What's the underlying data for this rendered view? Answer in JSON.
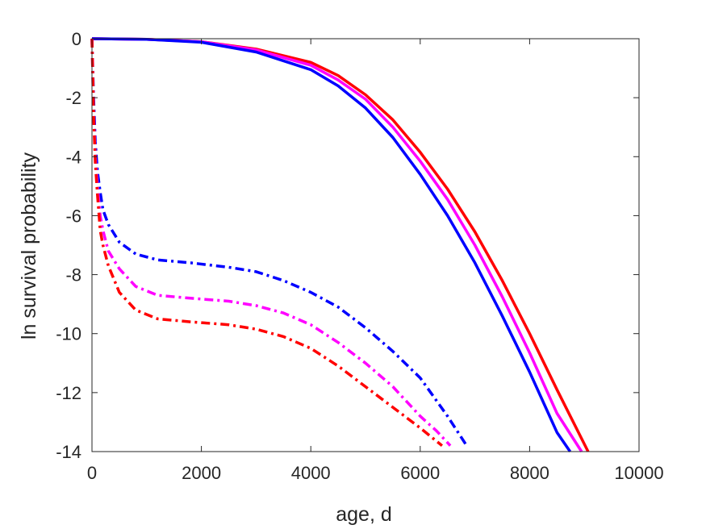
{
  "chart_data": {
    "type": "line",
    "title": "",
    "xlabel": "age, d",
    "ylabel": "ln survival probability",
    "xlim": [
      0,
      10000
    ],
    "ylim": [
      -14,
      0
    ],
    "xticks": [
      0,
      2000,
      4000,
      6000,
      8000,
      10000
    ],
    "xtick_labels": [
      "0",
      "2000",
      "4000",
      "6000",
      "8000",
      "10000"
    ],
    "yticks": [
      0,
      -2,
      -4,
      -6,
      -8,
      -10,
      -12,
      -14
    ],
    "ytick_labels": [
      "0",
      "-2",
      "-4",
      "-6",
      "-8",
      "-10",
      "-12",
      "-14"
    ],
    "grid": false,
    "legend": "none",
    "series": [
      {
        "color": "#ff0000",
        "style": "solid",
        "x": [
          0,
          1000,
          2000,
          3000,
          4000,
          4500,
          5000,
          5500,
          6000,
          6500,
          7000,
          7500,
          8000,
          8500,
          9070
        ],
        "y": [
          0,
          -0.02,
          -0.1,
          -0.35,
          -0.8,
          -1.25,
          -1.9,
          -2.75,
          -3.85,
          -5.1,
          -6.55,
          -8.2,
          -10.0,
          -11.9,
          -14
        ]
      },
      {
        "color": "#ff00ff",
        "style": "solid",
        "x": [
          0,
          1000,
          2000,
          3000,
          4000,
          4500,
          5000,
          5500,
          6000,
          6500,
          7000,
          7500,
          8000,
          8500,
          8950
        ],
        "y": [
          0,
          -0.02,
          -0.1,
          -0.38,
          -0.9,
          -1.4,
          -2.05,
          -3.0,
          -4.15,
          -5.45,
          -7.0,
          -8.75,
          -10.65,
          -12.7,
          -14
        ]
      },
      {
        "color": "#0000ff",
        "style": "solid",
        "x": [
          0,
          1000,
          2000,
          3000,
          4000,
          4500,
          5000,
          5500,
          6000,
          6500,
          7000,
          7500,
          8000,
          8500,
          8740
        ],
        "y": [
          0,
          -0.02,
          -0.12,
          -0.45,
          -1.05,
          -1.6,
          -2.35,
          -3.35,
          -4.6,
          -6.0,
          -7.6,
          -9.4,
          -11.3,
          -13.35,
          -14
        ]
      },
      {
        "color": "#0000ff",
        "style": "dashdot",
        "x": [
          0,
          30,
          60,
          100,
          150,
          200,
          300,
          500,
          800,
          1200,
          1800,
          2500,
          3000,
          3500,
          4000,
          4500,
          5000,
          5500,
          6000,
          6500,
          6850
        ],
        "y": [
          0,
          -2.0,
          -3.5,
          -4.5,
          -5.2,
          -5.8,
          -6.3,
          -6.9,
          -7.3,
          -7.5,
          -7.6,
          -7.75,
          -7.9,
          -8.2,
          -8.6,
          -9.1,
          -9.8,
          -10.6,
          -11.5,
          -12.8,
          -13.8
        ]
      },
      {
        "color": "#ff00ff",
        "style": "dashdot",
        "x": [
          0,
          30,
          60,
          100,
          150,
          200,
          300,
          500,
          800,
          1200,
          1800,
          2500,
          3000,
          3500,
          4000,
          4500,
          5000,
          5500,
          6000,
          6300,
          6550
        ],
        "y": [
          0,
          -2.5,
          -4.0,
          -5.0,
          -6.0,
          -6.5,
          -7.2,
          -7.8,
          -8.4,
          -8.7,
          -8.8,
          -8.9,
          -9.05,
          -9.3,
          -9.7,
          -10.3,
          -11.0,
          -11.8,
          -12.8,
          -13.3,
          -13.8
        ]
      },
      {
        "color": "#ff0000",
        "style": "dashdot",
        "x": [
          0,
          30,
          60,
          100,
          150,
          200,
          300,
          500,
          800,
          1200,
          1800,
          2500,
          3000,
          3500,
          4000,
          4500,
          5000,
          5500,
          6000,
          6200,
          6400
        ],
        "y": [
          0,
          -2.6,
          -4.2,
          -5.3,
          -6.5,
          -7.0,
          -7.7,
          -8.6,
          -9.2,
          -9.5,
          -9.6,
          -9.7,
          -9.85,
          -10.1,
          -10.5,
          -11.1,
          -11.8,
          -12.5,
          -13.2,
          -13.5,
          -13.8
        ]
      }
    ]
  }
}
